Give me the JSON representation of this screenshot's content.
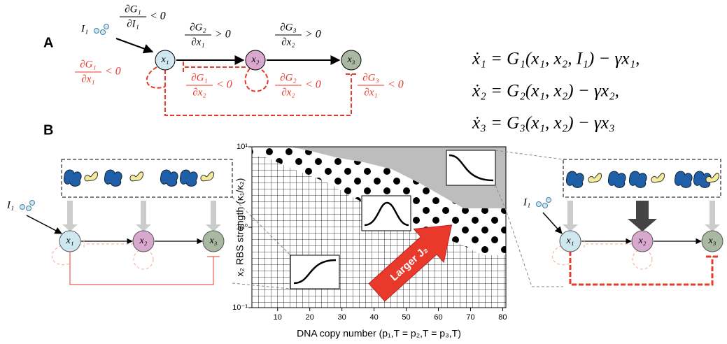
{
  "panel_a": {
    "label": "A",
    "input": "I₁",
    "nodes": [
      "x₁",
      "x₂",
      "x₃"
    ],
    "derivatives": [
      {
        "num": "∂G₁",
        "den": "∂I₁",
        "rel": "< 0"
      },
      {
        "num": "∂G₂",
        "den": "∂x₁",
        "rel": "> 0"
      },
      {
        "num": "∂G₃",
        "den": "∂x₂",
        "rel": "> 0"
      },
      {
        "num": "∂G₁",
        "den": "∂x₁",
        "rel": "< 0"
      },
      {
        "num": "∂G₁",
        "den": "∂x₂",
        "rel": "< 0"
      },
      {
        "num": "∂G₂",
        "den": "∂x₂",
        "rel": "< 0"
      },
      {
        "num": "∂G₃",
        "den": "∂x₁",
        "rel": "< 0"
      }
    ],
    "equations": [
      "ẋ₁ = G₁(x₁, x₂, I₁) − γx₁,",
      "ẋ₂ = G₂(x₁, x₂) − γx₂,",
      "ẋ₃ = G₃(x₁, x₂) − γx₃"
    ]
  },
  "panel_b": {
    "label": "B",
    "left": {
      "input": "I₁",
      "nodes": [
        "x₁",
        "x₂",
        "x₃"
      ]
    },
    "right": {
      "input": "I₁",
      "nodes": [
        "x₁",
        "x₂",
        "x₃"
      ]
    }
  },
  "chart_data": {
    "type": "region",
    "xlabel": "DNA copy number (p₁,T = p₂,T = p₃,T)",
    "ylabel": "x₂ RBS strength (κ₁/κ₂)",
    "annotation": "Larger J₂",
    "xlim": [
      2,
      81
    ],
    "xticks": [
      10,
      20,
      30,
      40,
      50,
      60,
      70,
      80
    ],
    "ylim": [
      0.1,
      10
    ],
    "yticks": [
      {
        "value": 0.1,
        "label": "10⁻¹"
      },
      {
        "value": 1,
        "label": "10⁰"
      },
      {
        "value": 10,
        "label": "10¹"
      }
    ],
    "log_y": true
  }
}
